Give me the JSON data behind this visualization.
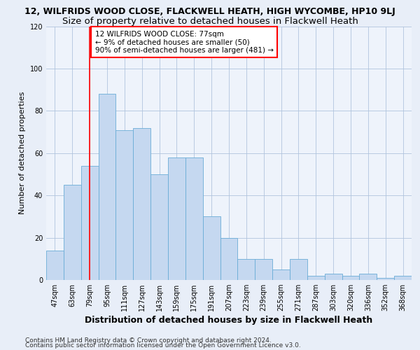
{
  "title_line1": "12, WILFRIDS WOOD CLOSE, FLACKWELL HEATH, HIGH WYCOMBE, HP10 9LJ",
  "title_line2": "Size of property relative to detached houses in Flackwell Heath",
  "xlabel": "Distribution of detached houses by size in Flackwell Heath",
  "ylabel": "Number of detached properties",
  "categories": [
    "47sqm",
    "63sqm",
    "79sqm",
    "95sqm",
    "111sqm",
    "127sqm",
    "143sqm",
    "159sqm",
    "175sqm",
    "191sqm",
    "207sqm",
    "223sqm",
    "239sqm",
    "255sqm",
    "271sqm",
    "287sqm",
    "303sqm",
    "320sqm",
    "336sqm",
    "352sqm",
    "368sqm"
  ],
  "values": [
    14,
    45,
    54,
    88,
    71,
    72,
    50,
    58,
    58,
    30,
    20,
    10,
    10,
    5,
    10,
    2,
    3,
    2,
    3,
    1,
    2
  ],
  "bar_color": "#c5d8f0",
  "bar_edge_color": "#6aacd6",
  "vline_x_index": 2,
  "vline_color": "red",
  "annotation_text": "12 WILFRIDS WOOD CLOSE: 77sqm\n← 9% of detached houses are smaller (50)\n90% of semi-detached houses are larger (481) →",
  "ylim": [
    0,
    120
  ],
  "yticks": [
    0,
    20,
    40,
    60,
    80,
    100,
    120
  ],
  "footer_line1": "Contains HM Land Registry data © Crown copyright and database right 2024.",
  "footer_line2": "Contains public sector information licensed under the Open Government Licence v3.0.",
  "background_color": "#e8eef8",
  "plot_bg_color": "#eef3fb",
  "title1_fontsize": 9,
  "title2_fontsize": 9.5,
  "xlabel_fontsize": 9,
  "ylabel_fontsize": 8,
  "tick_fontsize": 7,
  "footer_fontsize": 6.5,
  "annotation_fontsize": 7.5
}
